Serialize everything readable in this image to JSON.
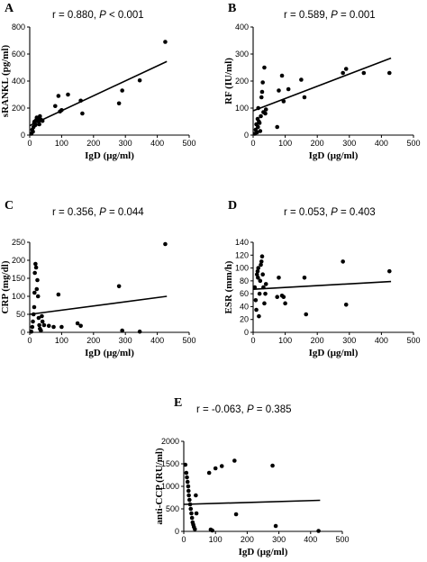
{
  "chart_data": [
    {
      "id": "A",
      "type": "scatter",
      "letter": "A",
      "stat": {
        "r": "r = 0.880, ",
        "p_label": "P",
        "p_value": " < 0.001"
      },
      "xlabel": "IgD (μg/ml)",
      "ylabel": "sRANKL (pg/ml)",
      "xlim": [
        0,
        500
      ],
      "ylim": [
        0,
        800
      ],
      "xticks": [
        0,
        100,
        200,
        300,
        400,
        500
      ],
      "yticks": [
        0,
        200,
        400,
        600,
        800
      ],
      "points": [
        [
          5,
          10
        ],
        [
          8,
          40
        ],
        [
          10,
          25
        ],
        [
          12,
          60
        ],
        [
          14,
          90
        ],
        [
          15,
          100
        ],
        [
          18,
          75
        ],
        [
          20,
          110
        ],
        [
          22,
          130
        ],
        [
          25,
          120
        ],
        [
          28,
          100
        ],
        [
          30,
          80
        ],
        [
          32,
          140
        ],
        [
          35,
          115
        ],
        [
          40,
          105
        ],
        [
          80,
          215
        ],
        [
          90,
          290
        ],
        [
          95,
          175
        ],
        [
          100,
          185
        ],
        [
          120,
          300
        ],
        [
          160,
          255
        ],
        [
          165,
          160
        ],
        [
          280,
          235
        ],
        [
          290,
          330
        ],
        [
          345,
          405
        ],
        [
          425,
          690
        ]
      ],
      "fit": [
        [
          0,
          70
        ],
        [
          430,
          545
        ]
      ]
    },
    {
      "id": "B",
      "type": "scatter",
      "letter": "B",
      "stat": {
        "r": "r = 0.589, ",
        "p_label": "P",
        "p_value": " = 0.001"
      },
      "xlabel": "IgD (μg/ml)",
      "ylabel": "RF (IU/ml)",
      "xlim": [
        0,
        500
      ],
      "ylim": [
        0,
        400
      ],
      "xticks": [
        0,
        100,
        200,
        300,
        400,
        500
      ],
      "yticks": [
        0,
        100,
        200,
        300,
        400
      ],
      "points": [
        [
          5,
          5
        ],
        [
          8,
          20
        ],
        [
          10,
          40
        ],
        [
          12,
          10
        ],
        [
          14,
          60
        ],
        [
          15,
          30
        ],
        [
          16,
          100
        ],
        [
          18,
          50
        ],
        [
          20,
          45
        ],
        [
          22,
          15
        ],
        [
          24,
          70
        ],
        [
          26,
          140
        ],
        [
          28,
          160
        ],
        [
          30,
          195
        ],
        [
          32,
          85
        ],
        [
          35,
          250
        ],
        [
          38,
          80
        ],
        [
          40,
          95
        ],
        [
          75,
          30
        ],
        [
          80,
          165
        ],
        [
          90,
          220
        ],
        [
          95,
          125
        ],
        [
          110,
          170
        ],
        [
          150,
          205
        ],
        [
          160,
          140
        ],
        [
          280,
          230
        ],
        [
          290,
          245
        ],
        [
          345,
          230
        ],
        [
          425,
          230
        ]
      ],
      "fit": [
        [
          0,
          90
        ],
        [
          430,
          285
        ]
      ]
    },
    {
      "id": "C",
      "type": "scatter",
      "letter": "C",
      "stat": {
        "r": "r = 0.356, ",
        "p_label": "P",
        "p_value": " = 0.044"
      },
      "xlabel": "IgD (μg/ml)",
      "ylabel": "CRP (mg/dl)",
      "xlim": [
        0,
        500
      ],
      "ylim": [
        0,
        250
      ],
      "xticks": [
        0,
        100,
        200,
        300,
        400,
        500
      ],
      "yticks": [
        0,
        50,
        100,
        150,
        200,
        250
      ],
      "points": [
        [
          5,
          2
        ],
        [
          8,
          15
        ],
        [
          10,
          30
        ],
        [
          12,
          50
        ],
        [
          14,
          70
        ],
        [
          15,
          110
        ],
        [
          16,
          165
        ],
        [
          18,
          190
        ],
        [
          20,
          180
        ],
        [
          22,
          120
        ],
        [
          24,
          145
        ],
        [
          26,
          100
        ],
        [
          28,
          40
        ],
        [
          30,
          20
        ],
        [
          32,
          10
        ],
        [
          35,
          5
        ],
        [
          38,
          45
        ],
        [
          40,
          30
        ],
        [
          45,
          20
        ],
        [
          60,
          18
        ],
        [
          75,
          15
        ],
        [
          90,
          105
        ],
        [
          100,
          15
        ],
        [
          150,
          25
        ],
        [
          160,
          18
        ],
        [
          280,
          128
        ],
        [
          290,
          5
        ],
        [
          345,
          2
        ],
        [
          425,
          245
        ]
      ],
      "fit": [
        [
          0,
          50
        ],
        [
          430,
          100
        ]
      ]
    },
    {
      "id": "D",
      "type": "scatter",
      "letter": "D",
      "stat": {
        "r": "r = 0.053, ",
        "p_label": "P",
        "p_value": " = 0.403"
      },
      "xlabel": "IgD (μg/ml)",
      "ylabel": "ESR (mm/h)",
      "xlim": [
        0,
        500
      ],
      "ylim": [
        0,
        140
      ],
      "xticks": [
        0,
        100,
        200,
        300,
        400,
        500
      ],
      "yticks": [
        0,
        20,
        40,
        60,
        80,
        100,
        120,
        140
      ],
      "points": [
        [
          5,
          70
        ],
        [
          8,
          50
        ],
        [
          10,
          35
        ],
        [
          12,
          90
        ],
        [
          14,
          95
        ],
        [
          15,
          85
        ],
        [
          16,
          100
        ],
        [
          18,
          25
        ],
        [
          20,
          60
        ],
        [
          22,
          80
        ],
        [
          24,
          105
        ],
        [
          26,
          110
        ],
        [
          28,
          118
        ],
        [
          30,
          90
        ],
        [
          32,
          70
        ],
        [
          35,
          45
        ],
        [
          38,
          60
        ],
        [
          40,
          75
        ],
        [
          75,
          55
        ],
        [
          80,
          85
        ],
        [
          90,
          57
        ],
        [
          95,
          55
        ],
        [
          100,
          45
        ],
        [
          160,
          85
        ],
        [
          165,
          28
        ],
        [
          280,
          110
        ],
        [
          290,
          43
        ],
        [
          425,
          95
        ]
      ],
      "fit": [
        [
          0,
          67
        ],
        [
          430,
          79
        ]
      ]
    },
    {
      "id": "E",
      "type": "scatter",
      "letter": "E",
      "stat": {
        "r": "r = -0.063, ",
        "p_label": "P",
        "p_value": " = 0.385"
      },
      "xlabel": "IgD (μg/ml)",
      "ylabel": "anti-CCP (RU/ml)",
      "xlim": [
        0,
        500
      ],
      "ylim": [
        0,
        2000
      ],
      "xticks": [
        0,
        100,
        200,
        300,
        400,
        500
      ],
      "yticks": [
        0,
        500,
        1000,
        1500,
        2000
      ],
      "points": [
        [
          5,
          1480
        ],
        [
          8,
          1300
        ],
        [
          10,
          1200
        ],
        [
          12,
          1100
        ],
        [
          14,
          1000
        ],
        [
          15,
          900
        ],
        [
          16,
          800
        ],
        [
          18,
          700
        ],
        [
          20,
          600
        ],
        [
          22,
          500
        ],
        [
          24,
          400
        ],
        [
          26,
          300
        ],
        [
          28,
          200
        ],
        [
          30,
          150
        ],
        [
          32,
          100
        ],
        [
          35,
          50
        ],
        [
          38,
          800
        ],
        [
          40,
          400
        ],
        [
          80,
          1300
        ],
        [
          85,
          40
        ],
        [
          90,
          20
        ],
        [
          100,
          1400
        ],
        [
          120,
          1450
        ],
        [
          160,
          1570
        ],
        [
          165,
          380
        ],
        [
          280,
          1460
        ],
        [
          290,
          120
        ],
        [
          425,
          10
        ]
      ],
      "fit": [
        [
          0,
          600
        ],
        [
          430,
          690
        ]
      ]
    }
  ]
}
